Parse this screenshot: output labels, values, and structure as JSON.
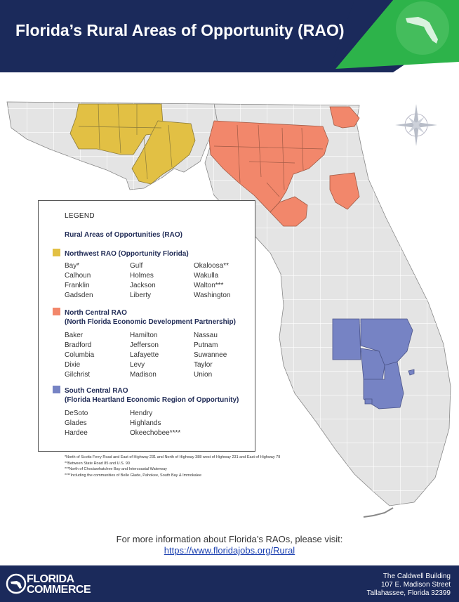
{
  "title": "Florida’s Rural Areas of Opportunity (RAO)",
  "colors": {
    "navy": "#1b2a5b",
    "green": "#2db34a",
    "northwest": "#e2c044",
    "north_central": "#f2876b",
    "south_central": "#7683c4",
    "county_gray": "#e4e4e4"
  },
  "legend": {
    "heading": "LEGEND",
    "subheading": "Rural Areas of Opportunities (RAO)",
    "groups": [
      {
        "name": "Northwest RAO (Opportunity Florida)",
        "subtitle": "",
        "columns": [
          [
            "Bay*",
            "Calhoun",
            "Franklin",
            "Gadsden"
          ],
          [
            "Gulf",
            "Holmes",
            "Jackson",
            "Liberty"
          ],
          [
            "Okaloosa**",
            "Wakulla",
            "Walton***",
            "Washington"
          ]
        ]
      },
      {
        "name": "North Central RAO",
        "subtitle": "(North Florida Economic Development Partnership)",
        "columns": [
          [
            "Baker",
            "Bradford",
            "Columbia",
            "Dixie",
            "Gilchrist"
          ],
          [
            "Hamilton",
            "Jefferson",
            "Lafayette",
            "Levy",
            "Madison"
          ],
          [
            "Nassau",
            "Putnam",
            "Suwannee",
            "Taylor",
            "Union"
          ]
        ]
      },
      {
        "name": "South Central RAO",
        "subtitle": "(Florida Heartland Economic Region of Opportunity)",
        "columns": [
          [
            "DeSoto",
            "Glades",
            "Hardee"
          ],
          [
            "Hendry",
            "Highlands",
            "Okeechobee****"
          ]
        ]
      }
    ]
  },
  "footnotes": [
    "*North of Scotts Ferry Road and East of Highway 231 and North of Highway 388 west of Highway 231 and East of Highway 79",
    "**Between State Road 85 and U.S. 90",
    "***North of Choctawhatchee Bay and Intercoastal Waterway",
    "****Including the communities of Belle Glade, Pahokee, South Bay & Immokalee"
  ],
  "info": {
    "text": "For more information about Florida’s RAOs, please visit:",
    "link": "https://www.floridajobs.org/Rural"
  },
  "footer": {
    "logo_line1": "FLORIDA",
    "logo_line2": "COMMERCE",
    "address": [
      "The Caldwell Building",
      "107 E. Madison Street",
      "Tallahassee, Florida 32399"
    ]
  }
}
